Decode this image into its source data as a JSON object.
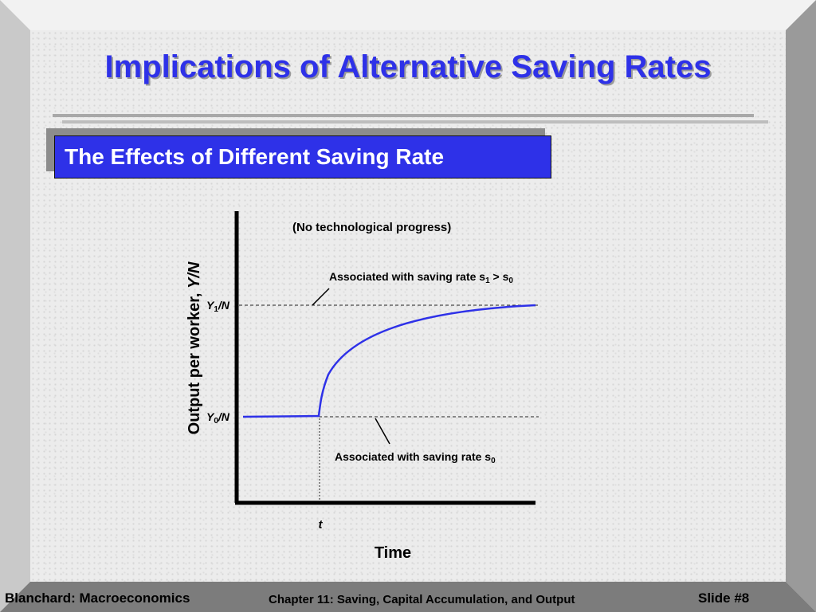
{
  "title": "Implications of Alternative Saving Rates",
  "subtitle": "The Effects of Different Saving Rate",
  "diagram": {
    "annotation": "(No technological progress)",
    "label_s1_main": "Associated with saving rate s",
    "label_s1_sub1": "1",
    "label_s1_gt": " > s",
    "label_s1_sub0": "0",
    "label_s0_main": "Associated with saving rate s",
    "label_s0_sub": "0",
    "y1_Y": "Y",
    "y1_sub": "1",
    "y1_N": "/N",
    "y0_Y": "Y",
    "y0_sub": "0",
    "y0_N": "/N",
    "ylabel_text": "Output per worker, ",
    "ylabel_var": "Y/N",
    "xlabel": "Time",
    "t_label": "t",
    "curve_color": "#2e31e8"
  },
  "footer": {
    "left": "Blanchard: Macroeconomics",
    "middle": "Chapter 11: Saving, Capital Accumulation, and Output",
    "right": "Slide #8"
  }
}
